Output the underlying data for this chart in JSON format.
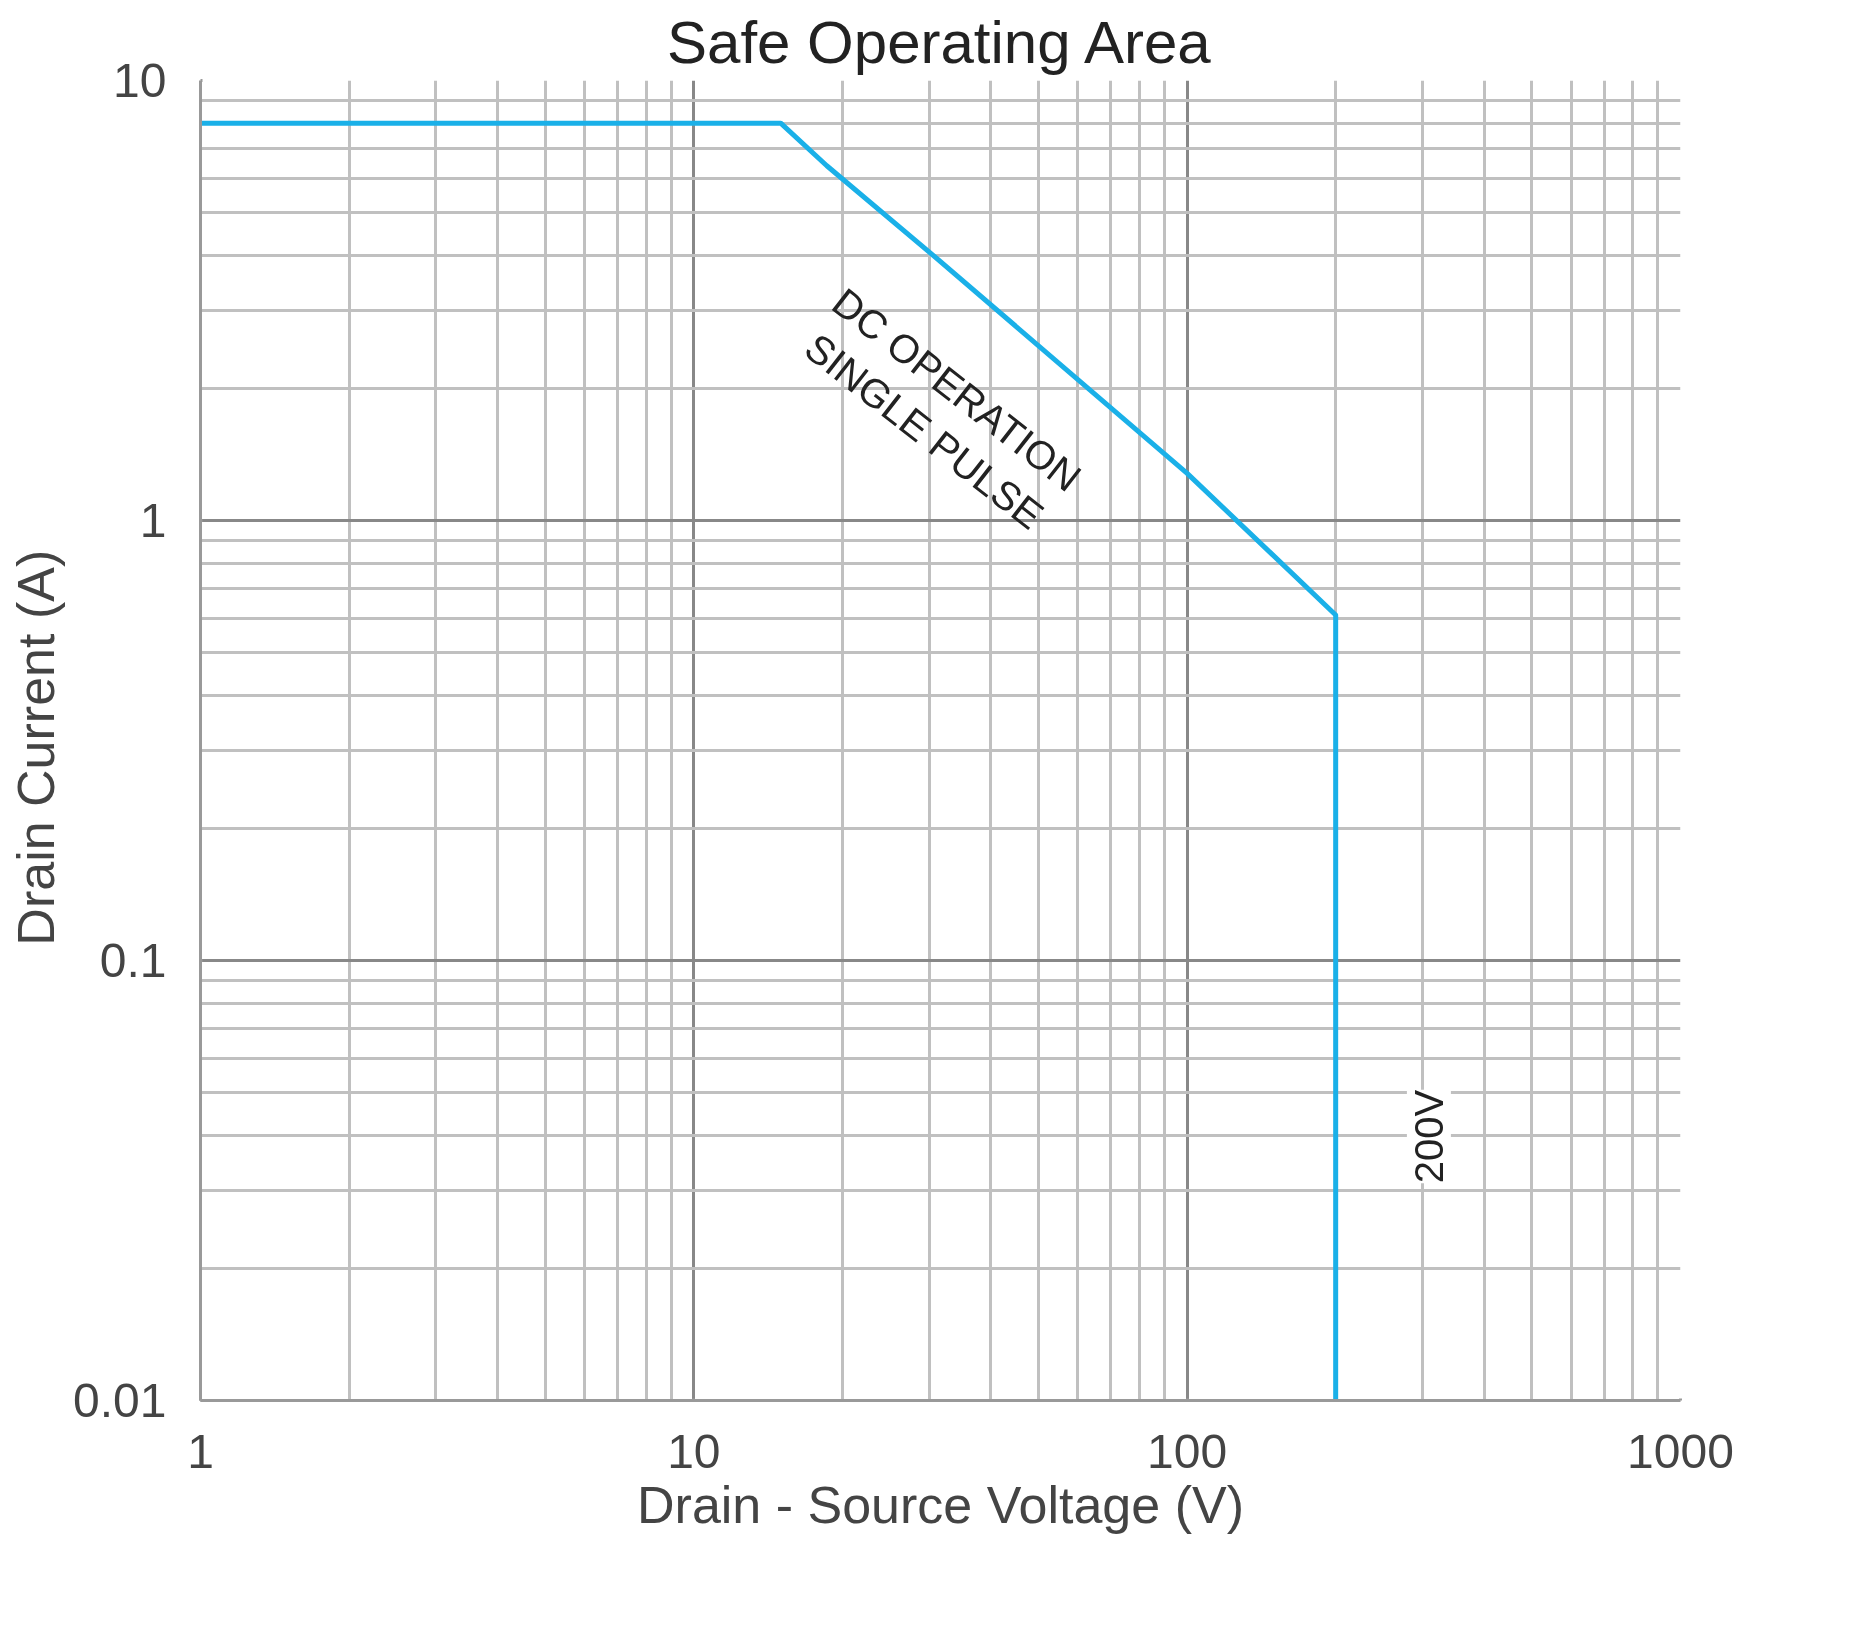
{
  "chart_data": {
    "type": "line",
    "title": "Safe Operating Area",
    "xlabel": "Drain - Source Voltage (V)",
    "ylabel": "Drain Current  (A)",
    "log": "xy",
    "grid": true,
    "xlim": [
      1,
      1000
    ],
    "ylim": [
      0.01,
      10
    ],
    "xticks": [
      1,
      10,
      100,
      1000
    ],
    "yticks": [
      0.01,
      0.1,
      1,
      10
    ],
    "series": [
      {
        "color": "#1ab0e8",
        "x": [
          1,
          15,
          18.6,
          30.6,
          100,
          200,
          200
        ],
        "values": [
          8,
          8,
          6.4,
          4.0,
          1.28,
          0.61,
          0.01
        ]
      }
    ],
    "annotations": [
      "DC OPERATION\nSINGLE PULSE",
      "200V"
    ]
  }
}
